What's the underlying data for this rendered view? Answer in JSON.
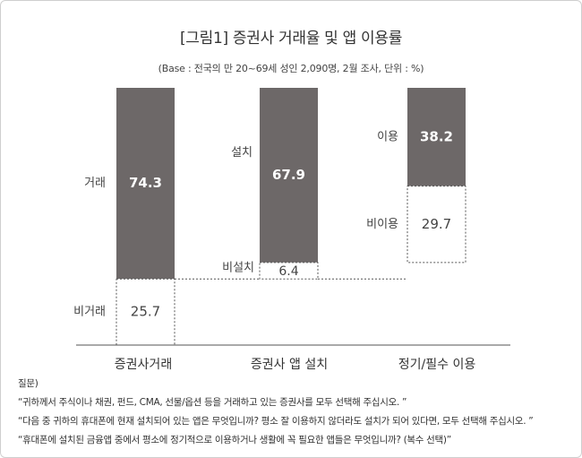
{
  "chart_data": {
    "type": "bar",
    "title": "[그림1] 증권사 거래율 및 앱 이용률",
    "subtitle": "(Base : 전국의 만 20~69세 성인 2,090명, 2월 조사, 단위 : %)",
    "ylim": [
      0,
      100
    ],
    "grid": false,
    "legend": "none",
    "categories": [
      "증권사거래",
      "증권사 앱 설치",
      "정기/필수 이용"
    ],
    "stacks": [
      {
        "category": "증권사거래",
        "base": 0,
        "segments": [
          {
            "label": "거래",
            "value": 74.3,
            "color": "#6d6868"
          },
          {
            "label": "비거래",
            "value": 25.7,
            "color": "#ffffff"
          }
        ]
      },
      {
        "category": "증권사 앱 설치",
        "base": 25.7,
        "segments": [
          {
            "label": "설치",
            "value": 67.9,
            "color": "#6d6868"
          },
          {
            "label": "비설치",
            "value": 6.4,
            "color": "#ffffff"
          }
        ]
      },
      {
        "category": "정기/필수 이용",
        "base": 32.1,
        "segments": [
          {
            "label": "이용",
            "value": 38.2,
            "color": "#6d6868"
          },
          {
            "label": "비이용",
            "value": 29.7,
            "color": "#ffffff"
          }
        ]
      }
    ],
    "value_labels": [
      "74.3",
      "25.7",
      "67.9",
      "6.4",
      "38.2",
      "29.7"
    ]
  },
  "questions": {
    "heading": "질문)",
    "items": [
      "“귀하께서 주식이나 채권, 펀드, CMA, 선물/옵션 등을 거래하고 있는 증권사를 모두 선택해 주십시오. ”",
      "“다음 중 귀하의 휴대폰에 현재 설치되어 있는 앱은 무엇입니까? 평소 잘 이용하지 않더라도 설치가 되어 있다면, 모두 선택해 주십시오. ”",
      "“휴대폰에 설치된 금융앱 중에서 평소에 정기적으로  이용하거나  생활에 꼭 필요한 앱들은  무엇입니까? (복수 선택)”"
    ]
  },
  "colors": {
    "dark_bar": "#6d6868",
    "outline": "#555555",
    "axis": "#555555"
  }
}
